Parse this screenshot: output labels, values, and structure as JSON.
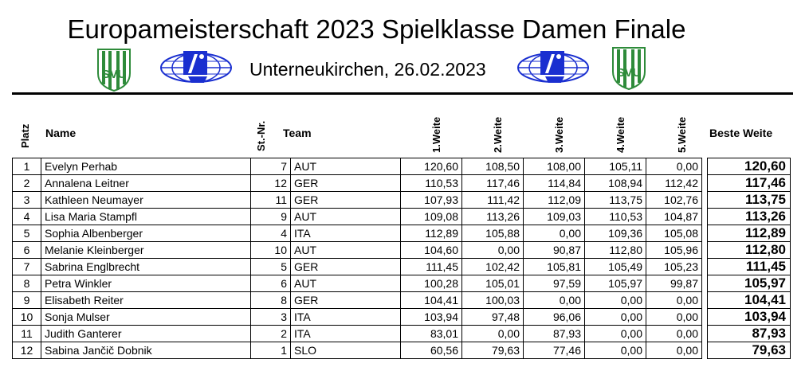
{
  "header": {
    "title": "Europameisterschaft 2023 Spielklasse Damen Finale",
    "subtitle": "Unterneukirchen, 26.02.2023",
    "logo_text": "SVU"
  },
  "columns": {
    "platz": "Platz",
    "name": "Name",
    "startnr": "St.-Nr.",
    "team": "Team",
    "w1": "1.Weite",
    "w2": "2.Weite",
    "w3": "3.Weite",
    "w4": "4.Weite",
    "w5": "5.Weite",
    "best": "Beste Weite"
  },
  "colors": {
    "logo_green": "#2e8b3a",
    "logo_blue": "#1a2fd0"
  },
  "rows": [
    {
      "platz": "1",
      "name": "Evelyn Perhab",
      "nr": "7",
      "team": "AUT",
      "w1": "120,60",
      "w2": "108,50",
      "w3": "108,00",
      "w4": "105,11",
      "w5": "0,00",
      "best": "120,60"
    },
    {
      "platz": "2",
      "name": "Annalena Leitner",
      "nr": "12",
      "team": "GER",
      "w1": "110,53",
      "w2": "117,46",
      "w3": "114,84",
      "w4": "108,94",
      "w5": "112,42",
      "best": "117,46"
    },
    {
      "platz": "3",
      "name": "Kathleen Neumayer",
      "nr": "11",
      "team": "GER",
      "w1": "107,93",
      "w2": "111,42",
      "w3": "112,09",
      "w4": "113,75",
      "w5": "102,76",
      "best": "113,75"
    },
    {
      "platz": "4",
      "name": "Lisa Maria Stampfl",
      "nr": "9",
      "team": "AUT",
      "w1": "109,08",
      "w2": "113,26",
      "w3": "109,03",
      "w4": "110,53",
      "w5": "104,87",
      "best": "113,26"
    },
    {
      "platz": "5",
      "name": "Sophia Albenberger",
      "nr": "4",
      "team": "ITA",
      "w1": "112,89",
      "w2": "105,88",
      "w3": "0,00",
      "w4": "109,36",
      "w5": "105,08",
      "best": "112,89"
    },
    {
      "platz": "6",
      "name": "Melanie Kleinberger",
      "nr": "10",
      "team": "AUT",
      "w1": "104,60",
      "w2": "0,00",
      "w3": "90,87",
      "w4": "112,80",
      "w5": "105,96",
      "best": "112,80"
    },
    {
      "platz": "7",
      "name": "Sabrina Englbrecht",
      "nr": "5",
      "team": "GER",
      "w1": "111,45",
      "w2": "102,42",
      "w3": "105,81",
      "w4": "105,49",
      "w5": "105,23",
      "best": "111,45"
    },
    {
      "platz": "8",
      "name": "Petra Winkler",
      "nr": "6",
      "team": "AUT",
      "w1": "100,28",
      "w2": "105,01",
      "w3": "97,59",
      "w4": "105,97",
      "w5": "99,87",
      "best": "105,97"
    },
    {
      "platz": "9",
      "name": "Elisabeth Reiter",
      "nr": "8",
      "team": "GER",
      "w1": "104,41",
      "w2": "100,03",
      "w3": "0,00",
      "w4": "0,00",
      "w5": "0,00",
      "best": "104,41"
    },
    {
      "platz": "10",
      "name": "Sonja Mulser",
      "nr": "3",
      "team": "ITA",
      "w1": "103,94",
      "w2": "97,48",
      "w3": "96,06",
      "w4": "0,00",
      "w5": "0,00",
      "best": "103,94"
    },
    {
      "platz": "11",
      "name": "Judith Ganterer",
      "nr": "2",
      "team": "ITA",
      "w1": "83,01",
      "w2": "0,00",
      "w3": "87,93",
      "w4": "0,00",
      "w5": "0,00",
      "best": "87,93"
    },
    {
      "platz": "12",
      "name": "Sabina Jančič Dobnik",
      "nr": "1",
      "team": "SLO",
      "w1": "60,56",
      "w2": "79,63",
      "w3": "77,46",
      "w4": "0,00",
      "w5": "0,00",
      "best": "79,63"
    }
  ]
}
